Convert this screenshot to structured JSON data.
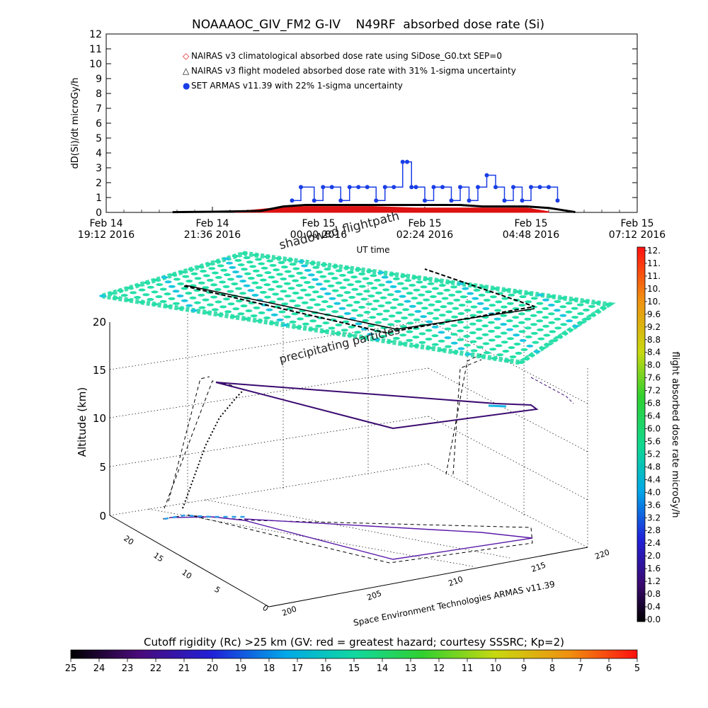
{
  "chart_data": [
    {
      "type": "scatter",
      "title": "NOAAAOC_GIV_FM2 G-IV    N49RF  absorbed dose rate (Si)",
      "ylabel": "dD(Si)/dt microGy/h",
      "xlabel": "UT time",
      "ylim": [
        0,
        12
      ],
      "yticks": [
        "0",
        "1",
        "2",
        "3",
        "4",
        "5",
        "6",
        "7",
        "8",
        "9",
        "10",
        "11",
        "12"
      ],
      "xticks": [
        {
          "top": "Feb 14",
          "bottom": "19:12 2016"
        },
        {
          "top": "Feb 14",
          "bottom": "21:36 2016"
        },
        {
          "top": "Feb 15",
          "bottom": "00:00 2016"
        },
        {
          "top": "Feb 15",
          "bottom": "02:24 2016"
        },
        {
          "top": "Feb 15",
          "bottom": "04:48 2016"
        },
        {
          "top": "Feb 15",
          "bottom": "07:12 2016"
        }
      ],
      "x_hours_range": [
        0,
        12
      ],
      "legend": [
        {
          "symbol": "◇",
          "color": "#dd1111",
          "label": "NAIRAS v3 climatological absorbed dose rate using SiDose_G0.txt SEP=0"
        },
        {
          "symbol": "△",
          "color": "#000000",
          "label": "NAIRAS v3 flight modeled absorbed dose rate with 31% 1-sigma uncertainty"
        },
        {
          "symbol": "●",
          "color": "#1a3ee6",
          "label": "SET ARMAS v11.39 with 22% 1-sigma uncertainty"
        }
      ],
      "legend_placement": "top-left",
      "series": [
        {
          "name": "NAIRAS v3 climatological absorbed dose rate using SiDose_G0.txt SEP=0",
          "color": "#dd1111",
          "x_hours": [
            2.9,
            3.8,
            4.5,
            5.0,
            5.5,
            6.0,
            6.5,
            7.0,
            7.5,
            8.0,
            8.5,
            9.0,
            9.5,
            10.0
          ],
          "values": [
            0.05,
            0.3,
            0.4,
            0.4,
            0.4,
            0.4,
            0.35,
            0.3,
            0.3,
            0.3,
            0.3,
            0.3,
            0.3,
            0.05
          ]
        },
        {
          "name": "NAIRAS v3 flight modeled absorbed dose rate with 31% 1-sigma uncertainty",
          "color": "#000000",
          "x_hours": [
            1.5,
            2.5,
            3.5,
            4.0,
            4.5,
            5.0,
            5.5,
            6.0,
            6.5,
            7.0,
            7.5,
            8.0,
            8.5,
            9.0,
            9.5,
            10.0,
            10.6
          ],
          "values": [
            0.02,
            0.05,
            0.1,
            0.4,
            0.5,
            0.5,
            0.5,
            0.5,
            0.5,
            0.5,
            0.5,
            0.5,
            0.4,
            0.4,
            0.4,
            0.3,
            0.02
          ]
        },
        {
          "name": "SET ARMAS v11.39 with 22% 1-sigma uncertainty",
          "color": "#1a3ee6",
          "x_hours": [
            4.2,
            4.4,
            4.7,
            4.9,
            5.1,
            5.3,
            5.5,
            5.7,
            5.9,
            6.1,
            6.3,
            6.5,
            6.7,
            6.8,
            6.9,
            7.0,
            7.2,
            7.4,
            7.6,
            7.8,
            8.0,
            8.2,
            8.4,
            8.6,
            8.8,
            9.0,
            9.2,
            9.4,
            9.6,
            9.8,
            10.0,
            10.2
          ],
          "values": [
            0.8,
            1.7,
            0.8,
            1.7,
            1.7,
            0.8,
            1.7,
            1.7,
            1.7,
            0.8,
            1.7,
            1.7,
            3.4,
            3.4,
            1.7,
            1.7,
            0.8,
            1.7,
            1.7,
            0.8,
            1.7,
            0.8,
            1.7,
            2.5,
            1.7,
            0.8,
            1.7,
            0.8,
            1.7,
            1.7,
            1.7,
            0.8
          ]
        }
      ]
    },
    {
      "type": "scatter",
      "subtype": "3d-trajectory",
      "zlabel": "Altitude (km)",
      "zticks": [
        "0",
        "5",
        "10",
        "15",
        "20"
      ],
      "lat_ticks": [
        "0",
        "5",
        "10",
        "15",
        "20"
      ],
      "lon_ticks": [
        "200",
        "205",
        "210",
        "215",
        "220"
      ],
      "lon_axis_label": "Space Environment Technologies ARMAS v11.39",
      "annotations": [
        "shadowed flightpath",
        "precipitating particles"
      ],
      "colorbar": {
        "label": "flight absorbed dose rate microGy/h",
        "ticks": [
          "12.",
          "11.",
          "11.",
          "10.",
          "10.",
          "9.6",
          "9.2",
          "8.8",
          "8.4",
          "8.0",
          "7.6",
          "7.2",
          "6.8",
          "6.4",
          "6.0",
          "5.6",
          "5.2",
          "4.8",
          "4.4",
          "4.0",
          "3.6",
          "3.2",
          "2.8",
          "2.4",
          "2.0",
          "1.6",
          "1.2",
          "0.8",
          "0.4",
          "0.0"
        ]
      }
    },
    {
      "type": "heatmap",
      "subtype": "colorbar",
      "title": "Cutoff rigidity (Rc) >25 km (GV: red = greatest hazard; courtesy SSSRC; Kp=2)",
      "ticks": [
        "25",
        "24",
        "23",
        "22",
        "21",
        "20",
        "19",
        "18",
        "17",
        "16",
        "15",
        "14",
        "13",
        "12",
        "11",
        "10",
        "9",
        "8",
        "7",
        "6",
        "5"
      ]
    }
  ]
}
